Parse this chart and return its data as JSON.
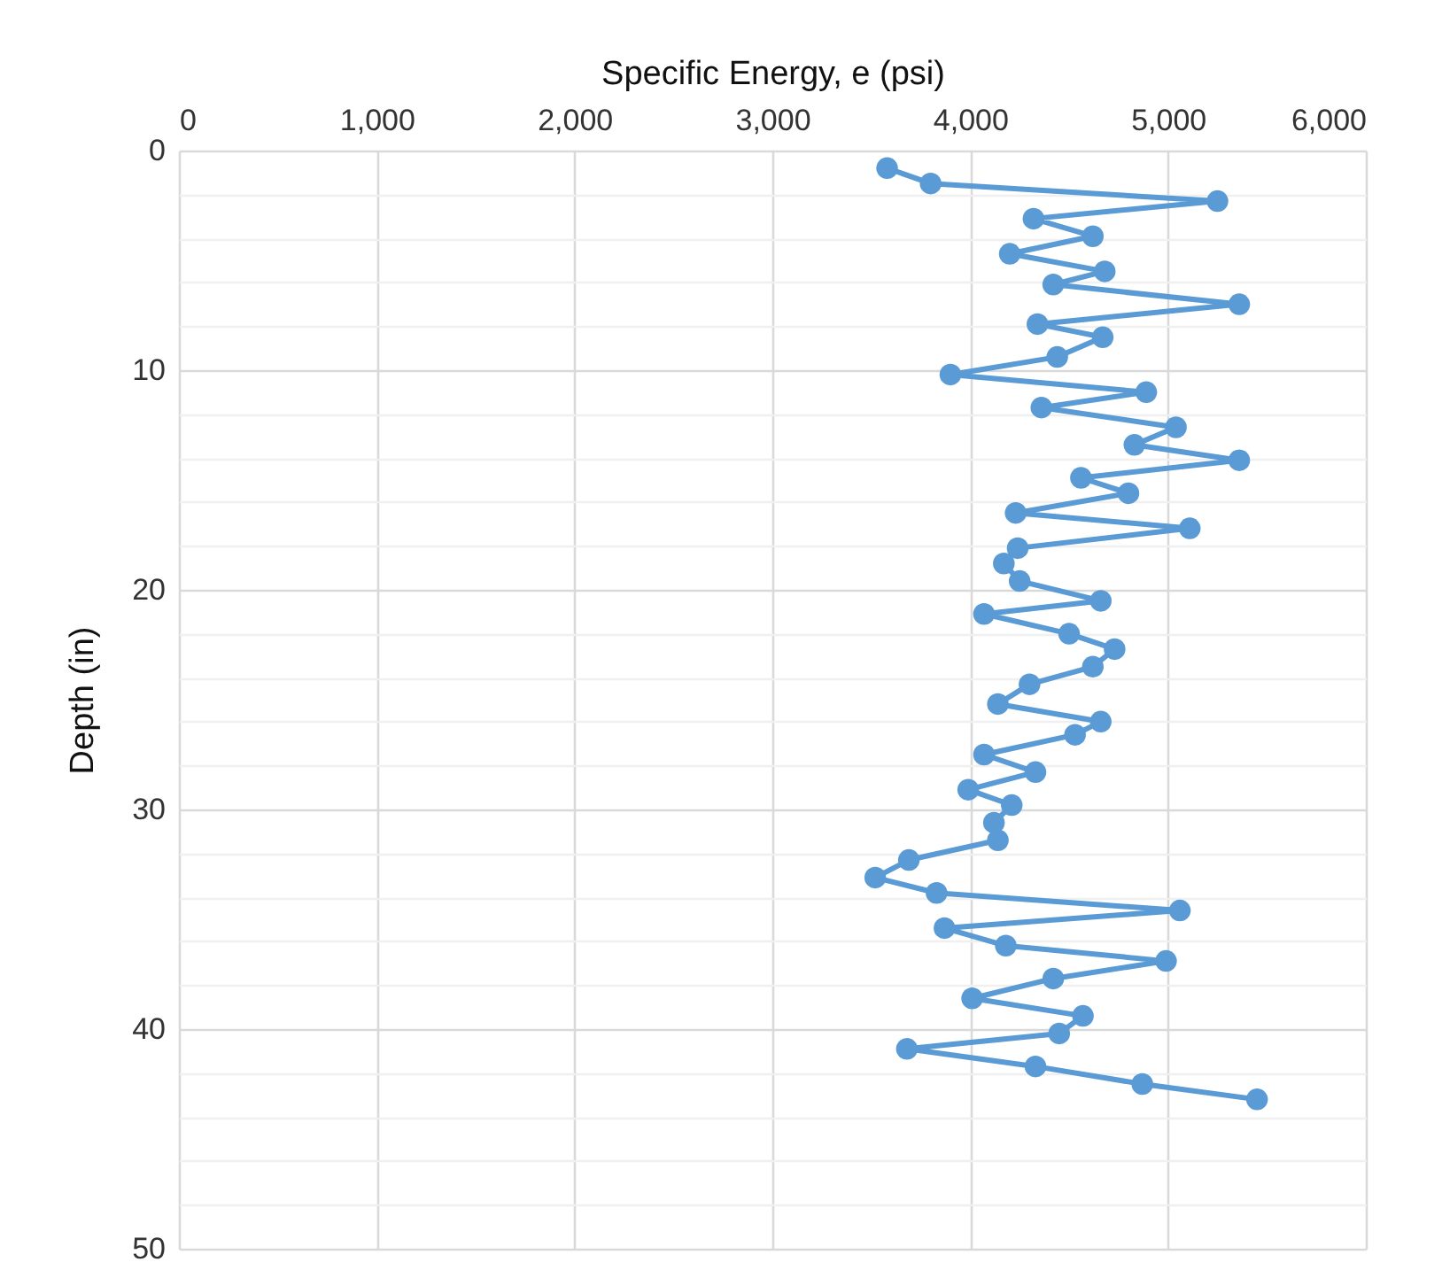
{
  "chart_data": {
    "type": "line",
    "xlabel": "Specific Energy, e (psi)",
    "ylabel": "Depth (in)",
    "marker": "circle",
    "line_style": "solid",
    "grid": true,
    "xlim": [
      0,
      6000
    ],
    "ylim": [
      50,
      0
    ],
    "xticks": [
      0,
      {
        "value": 1000,
        "label": "1,000"
      },
      {
        "value": 2000,
        "label": "2,000"
      },
      {
        "value": 3000,
        "label": "3,000"
      },
      {
        "value": 4000,
        "label": "4,000"
      },
      {
        "value": 5000,
        "label": "5,000"
      },
      {
        "value": 6000,
        "label": "6,000"
      }
    ],
    "yticks": [
      0,
      {
        "value": 2,
        "label": null
      },
      {
        "value": 4,
        "label": null
      },
      {
        "value": 6,
        "label": null
      },
      {
        "value": 8,
        "label": null
      },
      10,
      {
        "value": 12,
        "label": null
      },
      {
        "value": 14,
        "label": null
      },
      {
        "value": 16,
        "label": null
      },
      {
        "value": 18,
        "label": null
      },
      20,
      {
        "value": 22,
        "label": null
      },
      {
        "value": 24,
        "label": null
      },
      {
        "value": 26,
        "label": null
      },
      {
        "value": 28,
        "label": null
      },
      30,
      {
        "value": 32,
        "label": null
      },
      {
        "value": 34,
        "label": null
      },
      {
        "value": 36,
        "label": null
      },
      {
        "value": 38,
        "label": null
      },
      40,
      {
        "value": 42,
        "label": null
      },
      {
        "value": 44,
        "label": null
      },
      {
        "value": 46,
        "label": null
      },
      {
        "value": 48,
        "label": null
      },
      50
    ],
    "x": [
      3580,
      3800,
      5250,
      4320,
      4620,
      4200,
      4680,
      4420,
      5360,
      4340,
      4670,
      4440,
      3900,
      4890,
      4360,
      5040,
      4830,
      5360,
      4560,
      4800,
      4230,
      5110,
      4240,
      4170,
      4250,
      4660,
      4070,
      4500,
      4730,
      4620,
      4300,
      4140,
      4660,
      4530,
      4070,
      4330,
      3990,
      4210,
      4120,
      4140,
      3690,
      3520,
      3830,
      5060,
      3870,
      4180,
      4990,
      4420,
      4010,
      4570,
      4450,
      3680,
      4330,
      4870,
      5450
    ],
    "series": [
      {
        "color": "#5b9bd5",
        "values": [
          0.8,
          1.5,
          2.3,
          3.1,
          3.9,
          4.7,
          5.5,
          6.1,
          7.0,
          7.9,
          8.5,
          9.4,
          10.2,
          11.0,
          11.7,
          12.6,
          13.4,
          14.1,
          14.9,
          15.6,
          16.5,
          17.2,
          18.1,
          18.8,
          19.6,
          20.5,
          21.1,
          22.0,
          22.7,
          23.5,
          24.3,
          25.2,
          26.0,
          26.6,
          27.5,
          28.3,
          29.1,
          29.8,
          30.6,
          31.4,
          32.3,
          33.1,
          33.8,
          34.6,
          35.4,
          36.2,
          36.9,
          37.7,
          38.6,
          39.4,
          40.2,
          40.9,
          41.7,
          42.5,
          43.2
        ]
      }
    ]
  }
}
